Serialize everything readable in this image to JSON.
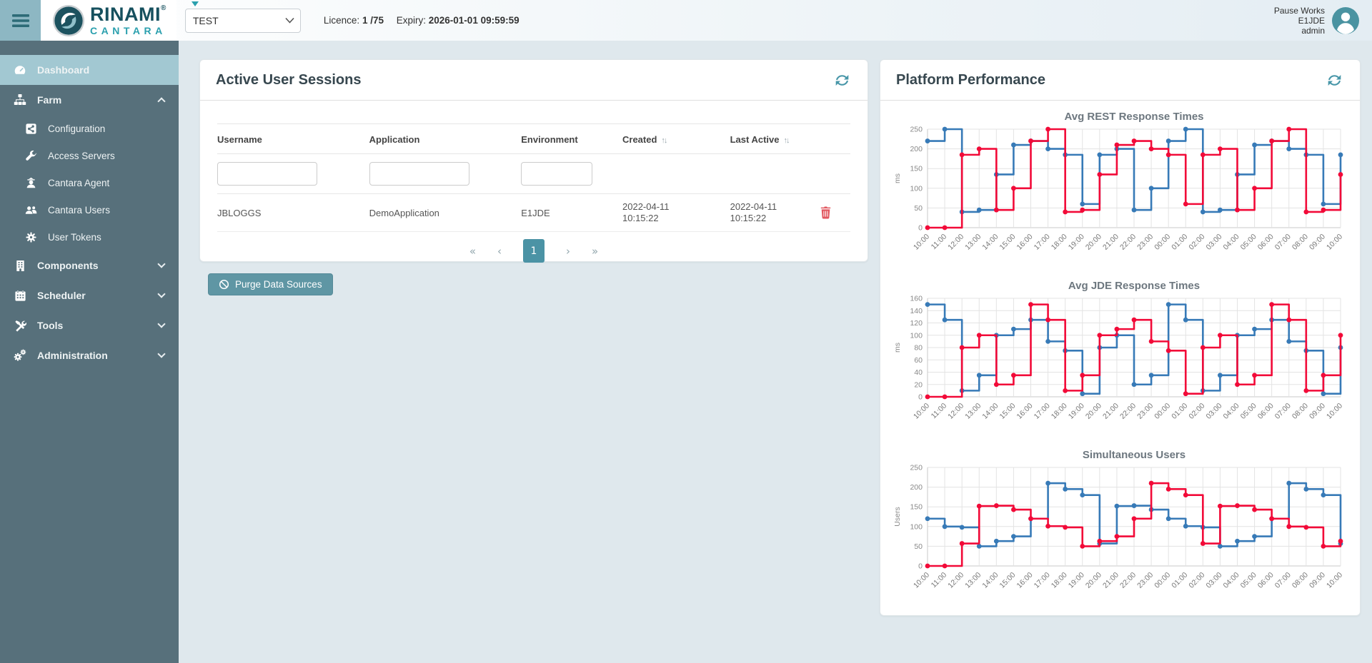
{
  "topbar": {
    "brand": {
      "name": "RINAMI",
      "registered": "®",
      "sub": "CANTARA"
    },
    "environment_select": {
      "value": "TEST"
    },
    "licence_label": "Licence:",
    "licence_value": "1 /75",
    "expiry_label": "Expiry:",
    "expiry_value": "2026-01-01 09:59:59",
    "user": {
      "line1": "Pause Works",
      "line2": "E1JDE",
      "line3": "admin"
    }
  },
  "sidebar": {
    "items": [
      {
        "label": "Dashboard",
        "active": true
      },
      {
        "label": "Farm",
        "expanded": true,
        "children": [
          {
            "label": "Configuration"
          },
          {
            "label": "Access Servers"
          },
          {
            "label": "Cantara Agent"
          },
          {
            "label": "Cantara Users"
          },
          {
            "label": "User Tokens"
          }
        ]
      },
      {
        "label": "Components",
        "expanded": false
      },
      {
        "label": "Scheduler",
        "expanded": false
      },
      {
        "label": "Tools",
        "expanded": false
      },
      {
        "label": "Administration",
        "expanded": false
      }
    ]
  },
  "sessions": {
    "title": "Active User Sessions",
    "columns": [
      "Username",
      "Application",
      "Environment",
      "Created",
      "Last Active"
    ],
    "sort_icon": "↑↓",
    "rows": [
      {
        "username": "JBLOGGS",
        "application": "DemoApplication",
        "environment": "E1JDE",
        "created": "2022-04-11 10:15:22",
        "last_active": "2022-04-11 10:15:22"
      }
    ],
    "pagination": {
      "first": "«",
      "prev": "‹",
      "page": "1",
      "next": "›",
      "last": "»"
    },
    "purge_button_label": "Purge Data Sources"
  },
  "performance": {
    "title": "Platform Performance"
  },
  "colors": {
    "accent_teal": "#4796a8",
    "sidebar_bg": "#57707b",
    "sidebar_active": "#a2c8d2",
    "series_blue": "#377ab7",
    "series_red": "#f20a38",
    "danger_red": "#e25860"
  },
  "chart_data": [
    {
      "type": "line",
      "step": true,
      "title": "Avg REST Response Times",
      "xlabel": "",
      "ylabel": "ms",
      "ylim": [
        0,
        250
      ],
      "ytick": 50,
      "grid": true,
      "legend": "none",
      "categories": [
        "10:00",
        "11:00",
        "12:00",
        "13:00",
        "14:00",
        "15:00",
        "16:00",
        "17:00",
        "18:00",
        "19:00",
        "20:00",
        "21:00",
        "22:00",
        "23:00",
        "00:00",
        "01:00",
        "02:00",
        "03:00",
        "04:00",
        "05:00",
        "06:00",
        "07:00",
        "08:00",
        "09:00",
        "10:00"
      ],
      "series": [
        {
          "color": "#377ab7",
          "values": [
            220,
            250,
            40,
            45,
            135,
            210,
            220,
            200,
            185,
            60,
            185,
            200,
            45,
            100,
            220,
            250,
            40,
            45,
            135,
            210,
            220,
            200,
            185,
            60,
            185
          ]
        },
        {
          "color": "#f20a38",
          "values": [
            0,
            0,
            185,
            200,
            45,
            100,
            220,
            250,
            40,
            45,
            135,
            210,
            220,
            200,
            185,
            60,
            185,
            200,
            45,
            100,
            220,
            250,
            40,
            45,
            135
          ]
        }
      ]
    },
    {
      "type": "line",
      "step": true,
      "title": "Avg JDE Response Times",
      "xlabel": "",
      "ylabel": "ms",
      "ylim": [
        0,
        160
      ],
      "ytick": 20,
      "grid": true,
      "legend": "none",
      "categories": [
        "10:00",
        "11:00",
        "12:00",
        "13:00",
        "14:00",
        "15:00",
        "16:00",
        "17:00",
        "18:00",
        "19:00",
        "20:00",
        "21:00",
        "22:00",
        "23:00",
        "00:00",
        "01:00",
        "02:00",
        "03:00",
        "04:00",
        "05:00",
        "06:00",
        "07:00",
        "08:00",
        "09:00",
        "10:00"
      ],
      "series": [
        {
          "color": "#377ab7",
          "values": [
            150,
            125,
            10,
            35,
            100,
            110,
            125,
            90,
            75,
            5,
            80,
            100,
            20,
            35,
            150,
            125,
            10,
            35,
            100,
            110,
            125,
            90,
            75,
            5,
            80
          ]
        },
        {
          "color": "#f20a38",
          "values": [
            0,
            0,
            80,
            100,
            20,
            35,
            150,
            125,
            10,
            35,
            100,
            110,
            125,
            90,
            75,
            5,
            80,
            100,
            20,
            35,
            150,
            125,
            10,
            35,
            100
          ]
        }
      ]
    },
    {
      "type": "line",
      "step": true,
      "title": "Simultaneous Users",
      "xlabel": "",
      "ylabel": "Users",
      "ylim": [
        0,
        250
      ],
      "ytick": 50,
      "grid": true,
      "legend": "none",
      "categories": [
        "10:00",
        "11:00",
        "12:00",
        "13:00",
        "14:00",
        "15:00",
        "16:00",
        "17:00",
        "18:00",
        "19:00",
        "20:00",
        "21:00",
        "22:00",
        "23:00",
        "00:00",
        "01:00",
        "02:00",
        "03:00",
        "04:00",
        "05:00",
        "06:00",
        "07:00",
        "08:00",
        "09:00",
        "10:00"
      ],
      "series": [
        {
          "color": "#377ab7",
          "values": [
            120,
            100,
            98,
            50,
            63,
            75,
            120,
            210,
            195,
            180,
            57,
            152,
            153,
            143,
            120,
            101,
            98,
            50,
            63,
            75,
            120,
            210,
            195,
            180,
            57
          ]
        },
        {
          "color": "#f20a38",
          "values": [
            0,
            0,
            57,
            152,
            153,
            143,
            120,
            101,
            98,
            50,
            63,
            75,
            120,
            210,
            195,
            180,
            57,
            152,
            153,
            143,
            120,
            100,
            98,
            50,
            63
          ]
        }
      ]
    }
  ]
}
